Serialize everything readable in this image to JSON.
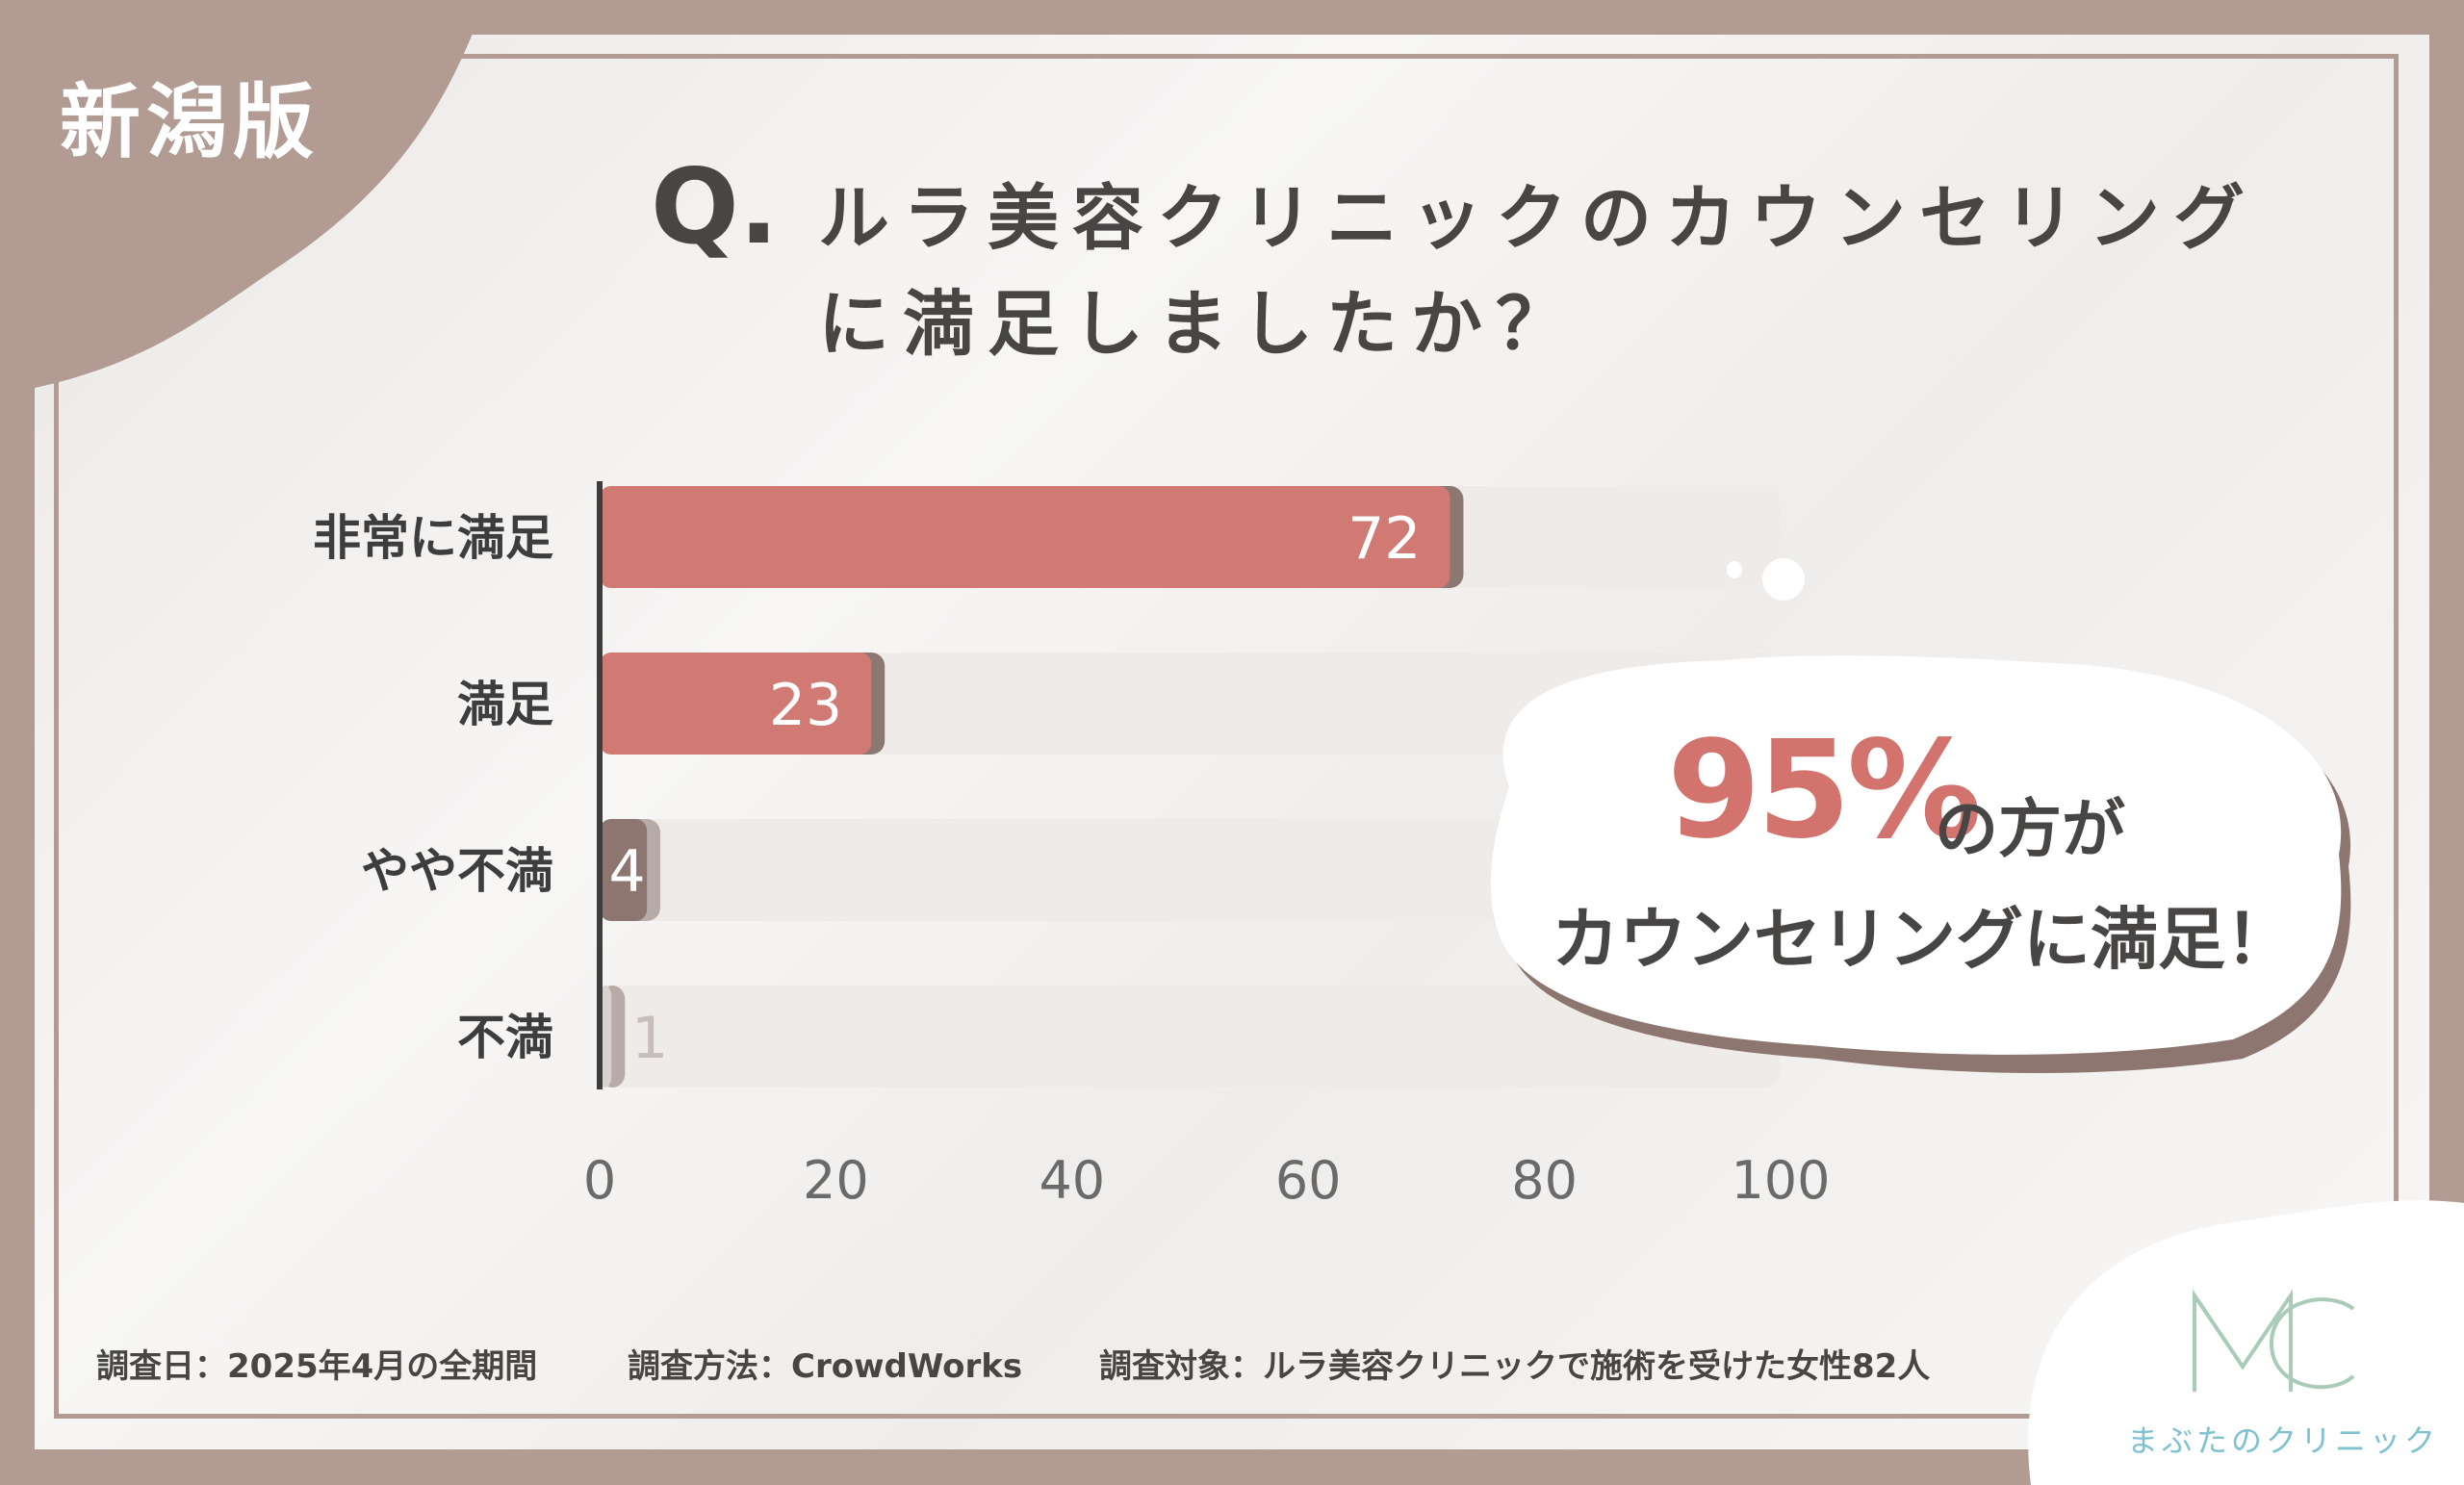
{
  "badge": {
    "region": "新潟版"
  },
  "question": {
    "prefix": "Q.",
    "line1": "ルラ美容クリニックのカウンセリング",
    "line2": "に満足しましたか？"
  },
  "chart_data": {
    "type": "bar",
    "orientation": "horizontal",
    "categories": [
      "非常に満足",
      "満足",
      "やや不満",
      "不満"
    ],
    "values": [
      72,
      23,
      4,
      1
    ],
    "xlim": [
      0,
      100
    ],
    "xticks": [
      "0",
      "20",
      "40",
      "60",
      "80",
      "100"
    ],
    "colors": {
      "非常に満足": "#d07a73",
      "満足": "#d07a73",
      "やや不満": "#8e7670",
      "不満": "#d9d3d0",
      "track": "#efebe9",
      "axis": "#3d3d3d"
    },
    "grid": false
  },
  "callout": {
    "percent": "95%",
    "suffix": "の方が",
    "line2": "カウンセリングに満足！"
  },
  "footer": {
    "date": "調査日：2025年4月の全期間",
    "method": "調査方法：CrowdWorks",
    "target": "調査対象：ルラ美容クリニックで施術を受けた女性82人"
  },
  "logo": {
    "text": "まぶたのクリニック"
  }
}
